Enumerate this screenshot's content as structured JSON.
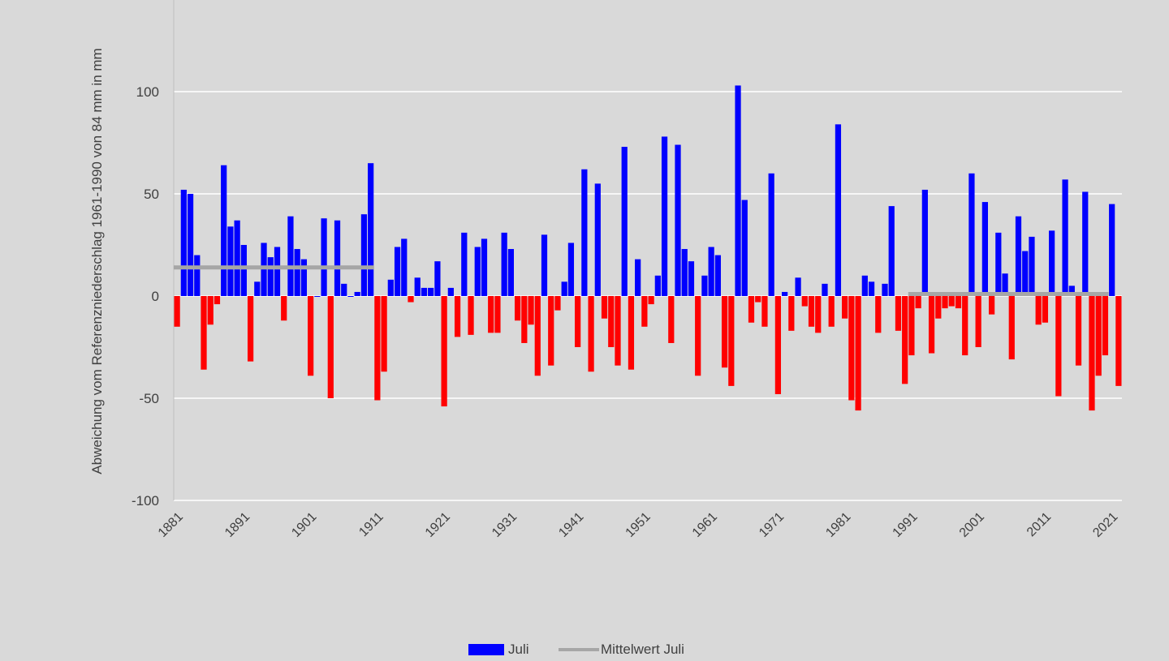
{
  "chart_data": {
    "type": "bar",
    "title": "",
    "ylabel": "Abweichung vom Referenzniederschlag 1961-1990 von 84 mm in mm",
    "xlabel": "",
    "ylim": [
      -100,
      100
    ],
    "y_ticks": [
      100,
      50,
      0,
      -50,
      -100
    ],
    "x_tick_labels": [
      "1881",
      "1891",
      "1901",
      "1911",
      "1921",
      "1931",
      "1941",
      "1951",
      "1961",
      "1971",
      "1981",
      "1991",
      "2001",
      "2011",
      "2021"
    ],
    "grid": true,
    "legend_position": "bottom",
    "colors": {
      "positive": "#0000ff",
      "negative": "#ff0000",
      "mean": "#a6a6a6",
      "grid": "#ffffff",
      "axis_text": "#404040"
    },
    "series": [
      {
        "name": "Juli",
        "start_year": 1881,
        "values": [
          -15,
          52,
          50,
          20,
          -36,
          -14,
          -4,
          64,
          34,
          37,
          25,
          -32,
          7,
          26,
          19,
          24,
          -12,
          39,
          23,
          18,
          -39,
          0,
          38,
          -50,
          37,
          6,
          0,
          2,
          40,
          65,
          -51,
          -37,
          8,
          24,
          28,
          -3,
          9,
          4,
          4,
          17,
          -54,
          4,
          -20,
          31,
          -19,
          24,
          28,
          -18,
          -18,
          31,
          23,
          -12,
          -23,
          -14,
          -39,
          30,
          -34,
          -7,
          7,
          26,
          -25,
          62,
          -37,
          55,
          -11,
          -25,
          -34,
          73,
          -36,
          18,
          -15,
          -4,
          10,
          78,
          -23,
          74,
          23,
          17,
          -39,
          10,
          24,
          20,
          -35,
          -44,
          103,
          47,
          -13,
          -3,
          -15,
          60,
          -48,
          2,
          -17,
          9,
          -5,
          -15,
          -18,
          6,
          -15,
          84,
          -11,
          -51,
          -56,
          10,
          7,
          -18,
          6,
          44,
          -17,
          -43,
          -29,
          -6,
          52,
          -28,
          -11,
          -6,
          -5,
          -6,
          -29,
          60,
          -25,
          46,
          -9,
          31,
          11,
          -31,
          39,
          22,
          29,
          -14,
          -13,
          32,
          -49,
          57,
          5,
          -34,
          51,
          -56,
          -39,
          -29,
          45,
          -44
        ]
      },
      {
        "name": "Mittelwert Juli",
        "type": "line",
        "segments": [
          {
            "from": 1881,
            "to": 1910,
            "value": 14
          },
          {
            "from": 1991,
            "to": 2020,
            "value": 1
          }
        ]
      }
    ]
  }
}
